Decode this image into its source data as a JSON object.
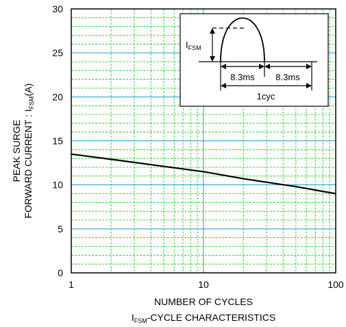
{
  "chart_data": {
    "type": "line",
    "xscale": "log",
    "xlim": [
      1,
      100
    ],
    "ylim": [
      0,
      30
    ],
    "x_ticks": [
      "1",
      "10",
      "100"
    ],
    "y_ticks": [
      "0",
      "5",
      "10",
      "15",
      "20",
      "25",
      "30"
    ],
    "xlabel": "NUMBER OF CYCLES",
    "subtitle_main": "I",
    "subtitle_sub": "FSM",
    "subtitle_rest": "-CYCLE CHARACTERISTICS",
    "ylabel_line1": "PEAK SURGE",
    "ylabel_line2_prefix": "FORWARD CURRENT : I",
    "ylabel_line2_sub": "FSM",
    "ylabel_line2_suffix": "(A)",
    "grid": "minor dashed green, major solid blue",
    "series": [
      {
        "x": [
          1,
          2,
          5,
          10,
          20,
          30,
          50,
          100
        ],
        "y": [
          13.5,
          12.9,
          12.1,
          11.5,
          10.7,
          10.3,
          9.8,
          9.0
        ]
      }
    ],
    "inset": {
      "label_main": "I",
      "label_sub": "FSM",
      "half_period_1": "8.3ms",
      "half_period_2": "8.3ms",
      "cycle_label": "1cyc"
    },
    "colors": {
      "minor_grid": "#00cc00",
      "major_grid": "#1c9ad6",
      "curve": "#000000"
    }
  }
}
